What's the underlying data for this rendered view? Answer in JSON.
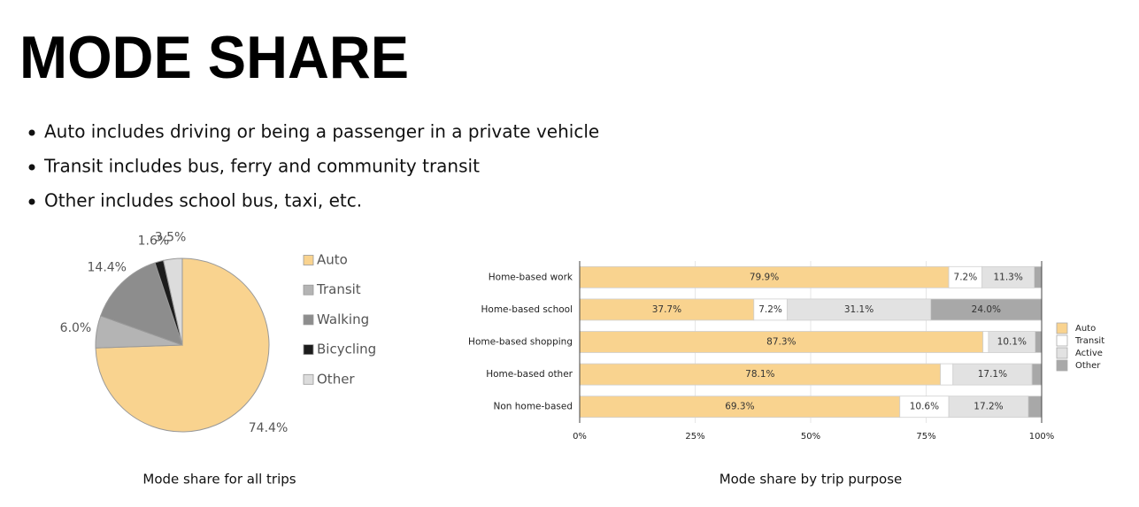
{
  "title": "MODE SHARE",
  "bullets": [
    "Auto includes driving or being a passenger in a private vehicle",
    "Transit includes bus, ferry and community transit",
    "Other includes school bus, taxi, etc."
  ],
  "chart_data": [
    {
      "type": "pie",
      "title": "Mode share for all trips",
      "categories": [
        "Auto",
        "Transit",
        "Walking",
        "Bicycling",
        "Other"
      ],
      "values": [
        74.4,
        6.0,
        14.4,
        1.6,
        3.5
      ],
      "value_labels": [
        "74.4%",
        "6.0%",
        "14.4%",
        "1.6%",
        "3.5%"
      ],
      "colors": [
        "#f9d38f",
        "#b4b4b4",
        "#8d8d8d",
        "#1c1c1c",
        "#dcdcdc"
      ]
    },
    {
      "type": "bar",
      "orientation": "horizontal",
      "stacked": true,
      "title": "Mode share by trip purpose",
      "categories": [
        "Home-based work",
        "Home-based school",
        "Home-based shopping",
        "Home-based other",
        "Non home-based"
      ],
      "series": [
        {
          "name": "Auto",
          "color": "#f9d38f",
          "values": [
            79.9,
            37.7,
            87.3,
            78.1,
            69.3
          ],
          "value_labels": [
            "79.9%",
            "37.7%",
            "87.3%",
            "78.1%",
            "69.3%"
          ]
        },
        {
          "name": "Transit",
          "color": "#ffffff",
          "values": [
            7.2,
            7.2,
            1.2,
            2.7,
            10.6
          ],
          "value_labels": [
            "7.2%",
            "7.2%",
            null,
            null,
            "10.6%"
          ]
        },
        {
          "name": "Active",
          "color": "#e2e2e2",
          "values": [
            11.3,
            31.1,
            10.1,
            17.1,
            17.2
          ],
          "value_labels": [
            "11.3%",
            "31.1%",
            "10.1%",
            "17.1%",
            "17.2%"
          ]
        },
        {
          "name": "Other",
          "color": "#a8a8a8",
          "values": [
            1.6,
            24.0,
            1.4,
            2.1,
            2.9
          ],
          "value_labels": [
            null,
            "24.0%",
            null,
            null,
            null
          ]
        }
      ],
      "xlim": [
        0,
        100
      ],
      "xticks": [
        {
          "value": 0,
          "label": "0%"
        },
        {
          "value": 25,
          "label": "25%"
        },
        {
          "value": 50,
          "label": "50%"
        },
        {
          "value": 75,
          "label": "75%"
        },
        {
          "value": 100,
          "label": "100%"
        }
      ],
      "grid": true
    }
  ]
}
